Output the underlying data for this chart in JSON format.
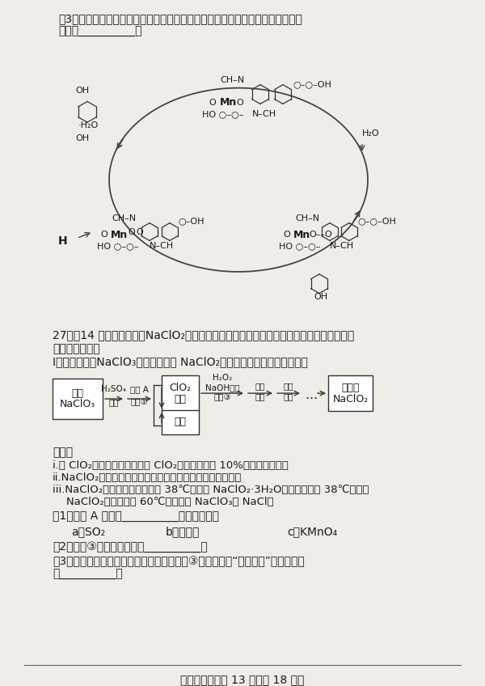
{
  "title": "高三理科综合第 13 页（共 18 页）",
  "bg_color": "#f0ede8",
  "text_color": "#1a1a1a",
  "q3_header": "（3）有机反应中也常用到催化剂。某反应原理可以下图表示，写出此反应的化学",
  "q3_line2": "方程式__________。",
  "q27_line1": "27．（14 分）亚氯酸鼠（NaClO₂）是一种重要的杀菌消毒剂，同时也是对烟气进行脆硫、",
  "q27_line2": "脆硝的吸收剂。",
  "q27_I": "Ⅰ．以氯酸鼠（NaClO₃）为原料制备 NaClO₂粗品的工艺流程如下图所示：",
  "known_header": "已知：",
  "known_i": "i.绯 ClO₂易分解爆炸，空气中 ClO₂的体积分数在 10%以下比较安全；",
  "known_ii": "ii.NaClO₂在碱性溶液中稳定存在，在酸性溶液中迅速分解；",
  "known_iii1": "iii.NaClO₂饱和溶液在温度低于 38℃时析出 NaClO₂·3H₂O，等于或高于 38℃时析出",
  "known_iii2": "    NaClO₂晶体，高于 60℃时分解成 NaClO₃和 NaCl。",
  "q1": "（1）试剂 A 应选择__________。（填字母）",
  "q1a": "a．SO₂",
  "q1b": "b．浓瞄酸",
  "q1c": "c．KMnO₄",
  "q2": "（2）反应③的离子方程式为__________。",
  "q3t": "（3）已知压强越大，物质的沸点越高。反应③结束后采用“减压蔓发”操作的原因",
  "q3t_line2": "是__________。"
}
